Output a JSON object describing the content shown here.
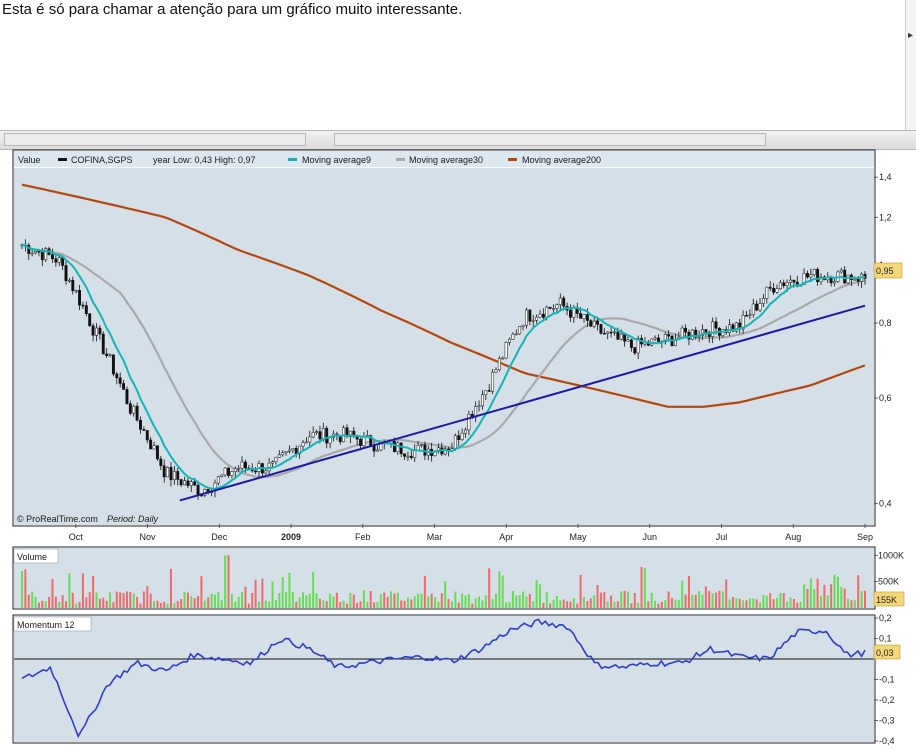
{
  "caption": "Esta é só para chamar a atenção para um gráfico muito interessante.",
  "chart": {
    "value_label": "Value",
    "legend": [
      {
        "name": "COFINA,SGPS",
        "color": "#111111"
      },
      {
        "name": "year Low: 0,43 High: 0,97",
        "color": null
      },
      {
        "name": "Moving average9",
        "color": "#16b5b5"
      },
      {
        "name": "Moving average30",
        "color": "#a9a9a9"
      },
      {
        "name": "Moving average200",
        "color": "#b5470d"
      }
    ],
    "credit": "© ProRealTime.com",
    "period": "Period: Daily",
    "last_price": "0,95",
    "volume_title": "Volume",
    "volume_last": "155K",
    "momentum_title": "Momentum 12",
    "momentum_last": "0,03",
    "colors": {
      "panel": "#d5dfe8",
      "header": "#dde7ef",
      "candle": "#111111",
      "ma9": "#16b5b5",
      "ma30": "#a9a9a9",
      "ma200": "#b5470d",
      "trendline": "#1a1aa6",
      "momentum": "#2f3fc4",
      "vol_up": "#66dd55",
      "vol_down": "#ee6b6b",
      "badge": "#f5d77b"
    }
  },
  "chart_data": [
    {
      "type": "candlestick",
      "title": "COFINA,SGPS",
      "scale": "log",
      "x_tick_labels": [
        "Oct",
        "Nov",
        "Dec",
        "2009",
        "Feb",
        "Mar",
        "Apr",
        "May",
        "Jun",
        "Jul",
        "Aug",
        "Sep"
      ],
      "y_tick_labels": [
        "1,4",
        "1,2",
        "1",
        "0,8",
        "0,6",
        "0,4"
      ],
      "ylim": [
        0.37,
        1.45
      ],
      "price_path": {
        "months": [
          0,
          0.5,
          1,
          1.5,
          2,
          2.5,
          3,
          3.5,
          4,
          4.5,
          5,
          5.5,
          6,
          6.5,
          7,
          7.5,
          8,
          8.5,
          9,
          9.5,
          10,
          10.5,
          11,
          11.5,
          11.75
        ],
        "close": [
          1.08,
          1.02,
          0.78,
          0.58,
          0.45,
          0.42,
          0.46,
          0.46,
          0.52,
          0.52,
          0.5,
          0.49,
          0.5,
          0.63,
          0.82,
          0.86,
          0.78,
          0.73,
          0.75,
          0.78,
          0.79,
          0.93,
          0.96,
          0.96,
          0.95
        ]
      },
      "moving_average_200": {
        "months": [
          0,
          1,
          2,
          3,
          4,
          5,
          6,
          7,
          8,
          8.5,
          9,
          9.5,
          10,
          10.5,
          11,
          11.75
        ],
        "values": [
          1.36,
          1.28,
          1.2,
          1.06,
          0.96,
          0.84,
          0.74,
          0.66,
          0.62,
          0.6,
          0.58,
          0.58,
          0.59,
          0.61,
          0.63,
          0.68
        ]
      },
      "trendline": {
        "from": [
          2.2,
          0.405
        ],
        "to": [
          11.75,
          0.855
        ]
      }
    },
    {
      "type": "bar",
      "title": "Volume",
      "y_tick_labels": [
        "1000K",
        "500K"
      ],
      "ylim": [
        0,
        1100000
      ],
      "last_value": "155K"
    },
    {
      "type": "line",
      "title": "Momentum 12",
      "y_tick_labels": [
        "0,2",
        "0,1",
        "-0,1",
        "-0,2",
        "-0,3",
        "-0,4"
      ],
      "ylim": [
        -0.4,
        0.2
      ],
      "zero_line": 0,
      "months": [
        0,
        0.4,
        0.8,
        1.2,
        1.6,
        2.0,
        2.4,
        2.8,
        3.2,
        3.6,
        4.0,
        4.4,
        4.8,
        5.2,
        5.6,
        6.0,
        6.4,
        6.8,
        7.2,
        7.6,
        8.0,
        8.4,
        8.8,
        9.2,
        9.6,
        10.0,
        10.4,
        10.8,
        11.2,
        11.5,
        11.75
      ],
      "values": [
        -0.1,
        -0.04,
        -0.38,
        -0.12,
        -0.02,
        -0.06,
        0.02,
        0.0,
        -0.02,
        0.1,
        0.05,
        -0.04,
        -0.02,
        0.0,
        0.01,
        -0.01,
        0.05,
        0.14,
        0.18,
        0.16,
        -0.03,
        -0.04,
        -0.02,
        -0.02,
        0.05,
        0.01,
        0.0,
        0.13,
        0.14,
        0.02,
        0.03
      ]
    }
  ]
}
